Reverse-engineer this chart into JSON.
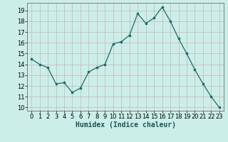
{
  "x": [
    0,
    1,
    2,
    3,
    4,
    5,
    6,
    7,
    8,
    9,
    10,
    11,
    12,
    13,
    14,
    15,
    16,
    17,
    18,
    19,
    20,
    21,
    22,
    23
  ],
  "y": [
    14.5,
    14.0,
    13.7,
    12.2,
    12.3,
    11.4,
    11.8,
    13.3,
    13.7,
    14.0,
    15.9,
    16.1,
    16.7,
    18.7,
    17.8,
    18.3,
    19.3,
    18.0,
    16.4,
    15.0,
    13.5,
    12.2,
    11.0,
    10.0
  ],
  "line_color": "#1a6b6b",
  "marker": "s",
  "marker_size": 2,
  "bg_color": "#cceee8",
  "grid_color": "#c8b4b4",
  "xlabel": "Humidex (Indice chaleur)",
  "xlim": [
    -0.5,
    23.5
  ],
  "ylim": [
    9.7,
    19.7
  ],
  "yticks": [
    10,
    11,
    12,
    13,
    14,
    15,
    16,
    17,
    18,
    19
  ],
  "xticks": [
    0,
    1,
    2,
    3,
    4,
    5,
    6,
    7,
    8,
    9,
    10,
    11,
    12,
    13,
    14,
    15,
    16,
    17,
    18,
    19,
    20,
    21,
    22,
    23
  ],
  "xlabel_fontsize": 7,
  "tick_fontsize": 6
}
